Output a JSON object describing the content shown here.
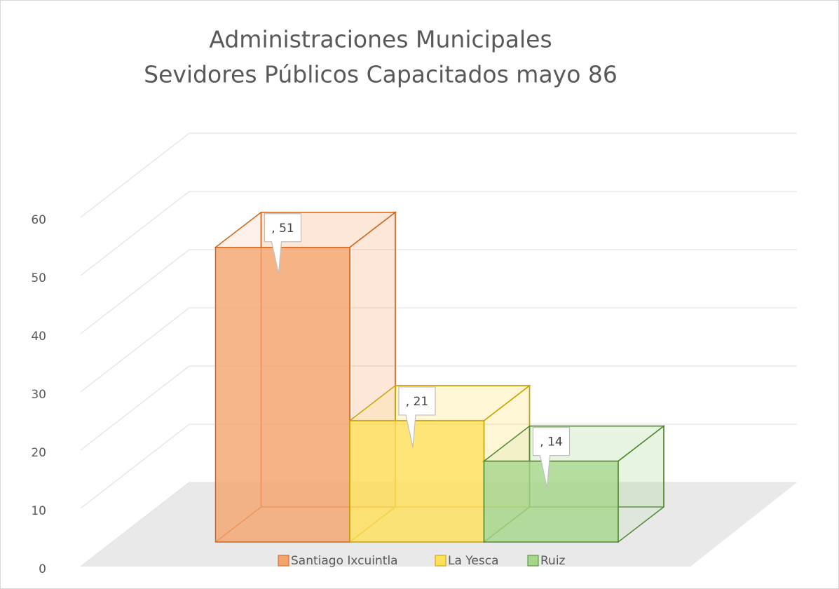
{
  "chart_data": {
    "type": "bar3d",
    "title": [
      "Administraciones Municipales",
      "Sevidores Públicos Capacitados mayo 86"
    ],
    "categories": [
      null
    ],
    "series": [
      {
        "name": "Santiago Ixcuintla",
        "color": "#f4a46c",
        "edge": "#d0651f",
        "values": [
          51
        ],
        "value_labels": [
          ", 51"
        ]
      },
      {
        "name": "La Yesca",
        "color": "#ffe05a",
        "edge": "#c9a100",
        "values": [
          21
        ],
        "value_labels": [
          ", 21"
        ]
      },
      {
        "name": "Ruiz",
        "color": "#a5d68a",
        "edge": "#4f8a2f",
        "values": [
          14
        ],
        "value_labels": [
          ", 14"
        ]
      }
    ],
    "ylim": [
      0,
      60
    ],
    "yticks": [
      0,
      10,
      20,
      30,
      40,
      50,
      60
    ],
    "grid": true,
    "legend": "bottom"
  }
}
